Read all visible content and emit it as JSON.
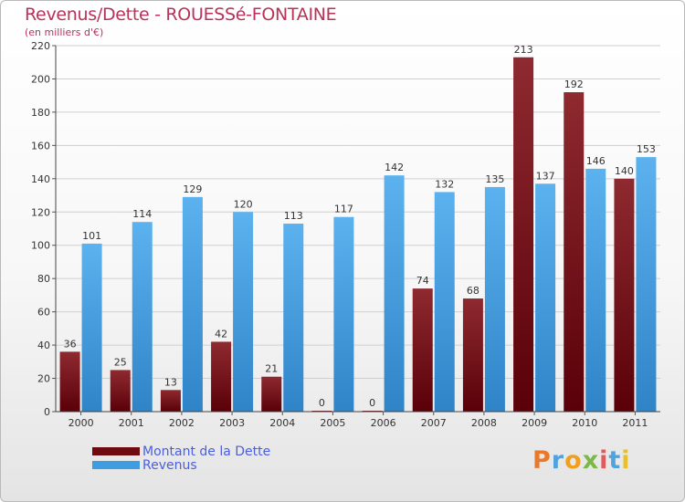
{
  "title": "Revenus/Dette - ROUESSé-FONTAINE",
  "subtitle": "(en milliers d'€)",
  "colors": {
    "dette": "#7b0a12",
    "revenus": "#3d9de0",
    "title": "#b8325a",
    "legend_text": "#4a5ee0"
  },
  "logo": {
    "letters": [
      "P",
      "r",
      "o",
      "x",
      "i",
      "t",
      "i"
    ],
    "colors": [
      "#e8792a",
      "#4fa3e0",
      "#f0a020",
      "#7ab848",
      "#e25b5b",
      "#4fa3e0",
      "#e8c12a"
    ]
  },
  "chart_data": {
    "type": "bar",
    "title": "Revenus/Dette - ROUESSé-FONTAINE",
    "subtitle": "(en milliers d'€)",
    "categories": [
      "2000",
      "2001",
      "2002",
      "2003",
      "2004",
      "2005",
      "2006",
      "2007",
      "2008",
      "2009",
      "2010",
      "2011"
    ],
    "series": [
      {
        "name": "Montant de la Dette",
        "values": [
          36,
          25,
          13,
          42,
          21,
          0,
          0,
          74,
          68,
          213,
          192,
          140
        ]
      },
      {
        "name": "Revenus",
        "values": [
          101,
          114,
          129,
          120,
          113,
          117,
          142,
          132,
          135,
          137,
          146,
          153
        ]
      }
    ],
    "ylim": [
      0,
      220
    ],
    "yticks": [
      0,
      20,
      40,
      60,
      80,
      100,
      120,
      140,
      160,
      180,
      200,
      220
    ],
    "xlabel": "",
    "ylabel": "",
    "grid": true,
    "legend_position": "bottom-left"
  }
}
